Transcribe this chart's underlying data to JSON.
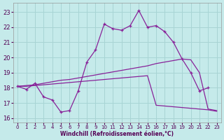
{
  "xlabel": "Windchill (Refroidissement éolien,°C)",
  "bg_color": "#c5eaea",
  "grid_color": "#a8d4d4",
  "line_color": "#882299",
  "xlim": [
    -0.5,
    23.5
  ],
  "ylim": [
    15.7,
    23.6
  ],
  "xticks": [
    0,
    1,
    2,
    3,
    4,
    5,
    6,
    7,
    8,
    9,
    10,
    11,
    12,
    13,
    14,
    15,
    16,
    17,
    18,
    19,
    20,
    21,
    22,
    23
  ],
  "yticks": [
    16,
    17,
    18,
    19,
    20,
    21,
    22,
    23
  ],
  "curve1_x": [
    0,
    1,
    2,
    3,
    4,
    5,
    6,
    7,
    8,
    9,
    10,
    11,
    12,
    13,
    14,
    15,
    16,
    17,
    18,
    19,
    20,
    21,
    22
  ],
  "curve1_y": [
    18.1,
    17.9,
    18.3,
    17.4,
    17.2,
    16.4,
    16.5,
    17.8,
    19.7,
    20.5,
    22.2,
    21.9,
    21.8,
    22.1,
    23.1,
    22.0,
    22.1,
    21.7,
    21.0,
    19.9,
    19.0,
    17.8,
    18.0
  ],
  "curve2_x": [
    0,
    1,
    2,
    3,
    4,
    5,
    6,
    7,
    8,
    9,
    10,
    11,
    12,
    13,
    14,
    15,
    16,
    17,
    18,
    19,
    20,
    21,
    22,
    23
  ],
  "curve2_y": [
    18.1,
    18.15,
    18.2,
    18.3,
    18.4,
    18.5,
    18.55,
    18.65,
    18.75,
    18.85,
    18.95,
    19.05,
    19.15,
    19.25,
    19.35,
    19.45,
    19.6,
    19.7,
    19.8,
    19.9,
    19.85,
    19.0,
    16.6,
    16.5
  ],
  "curve3_x": [
    0,
    1,
    2,
    3,
    4,
    5,
    6,
    7,
    8,
    9,
    10,
    11,
    12,
    13,
    14,
    15,
    16,
    17,
    18,
    19,
    20,
    21,
    22,
    23
  ],
  "curve3_y": [
    18.1,
    18.1,
    18.15,
    18.2,
    18.25,
    18.3,
    18.35,
    18.4,
    18.45,
    18.5,
    18.55,
    18.6,
    18.65,
    18.7,
    18.75,
    18.8,
    16.85,
    16.8,
    16.75,
    16.7,
    16.65,
    16.6,
    16.55,
    16.45
  ]
}
